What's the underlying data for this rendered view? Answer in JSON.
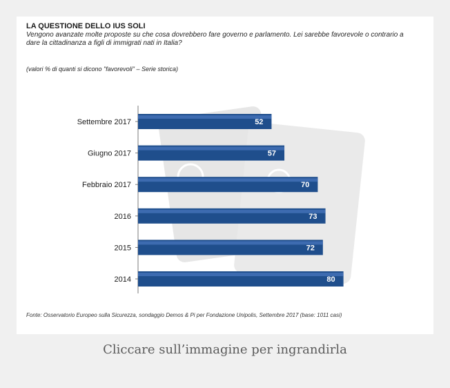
{
  "figure": {
    "title": "LA QUESTIONE DELLO IUS SOLI",
    "question": "Vengono avanzate molte proposte su che cosa dovrebbero fare governo e parlamento. Lei sarebbe favorevole o contrario a dare la cittadinanza a figli di immigrati nati in Italia?",
    "note": "(valori % di quanti si dicono \"favorevoli\" – Serie storica)",
    "source": "Fonte: Osservatorio Europeo sulla Sicurezza, sondaggio Demos & Pi per Fondazione Unipolis, Settembre 2017 (base: 1011 casi)"
  },
  "caption": "Cliccare sull’immagine per ingrandirla",
  "colors": {
    "bar": "#1f4e8c",
    "bar_highlight": "#3d6bb0",
    "axis": "#7a7a7a",
    "background": "#f0f0f0"
  },
  "chart_data": {
    "type": "bar",
    "orientation": "horizontal",
    "title": "LA QUESTIONE DELLO IUS SOLI",
    "categories": [
      "Settembre 2017",
      "Giugno 2017",
      "Febbraio 2017",
      "2016",
      "2015",
      "2014"
    ],
    "values": [
      52,
      57,
      70,
      73,
      72,
      80
    ],
    "xlim": [
      0,
      100
    ],
    "grid": false,
    "legend": "none"
  }
}
